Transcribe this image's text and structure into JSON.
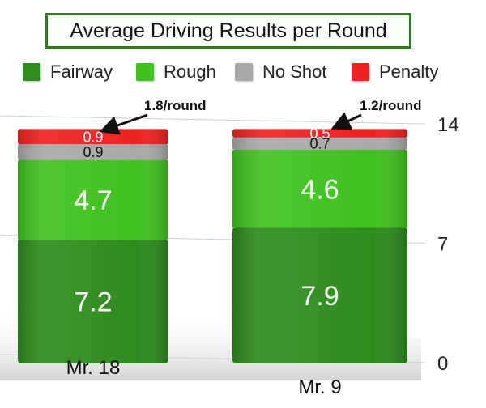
{
  "chart_data": {
    "type": "bar",
    "stacked": true,
    "title": "Average Driving Results per Round",
    "categories": [
      "Mr. 18",
      "Mr. 9"
    ],
    "series": [
      {
        "name": "Fairway",
        "color": "#2e8b1e",
        "values": [
          7.2,
          7.9
        ]
      },
      {
        "name": "Rough",
        "color": "#3fc21f",
        "values": [
          4.7,
          4.6
        ]
      },
      {
        "name": "No Shot",
        "color": "#a9a9a9",
        "values": [
          0.9,
          0.7
        ]
      },
      {
        "name": "Penalty",
        "color": "#ee2222",
        "values": [
          0.9,
          0.5
        ]
      }
    ],
    "annotations": [
      "1.8/round",
      "1.2/round"
    ],
    "ylim": [
      0,
      14
    ],
    "yticks": [
      0,
      7,
      14
    ],
    "legend_position": "top",
    "grid": true
  }
}
